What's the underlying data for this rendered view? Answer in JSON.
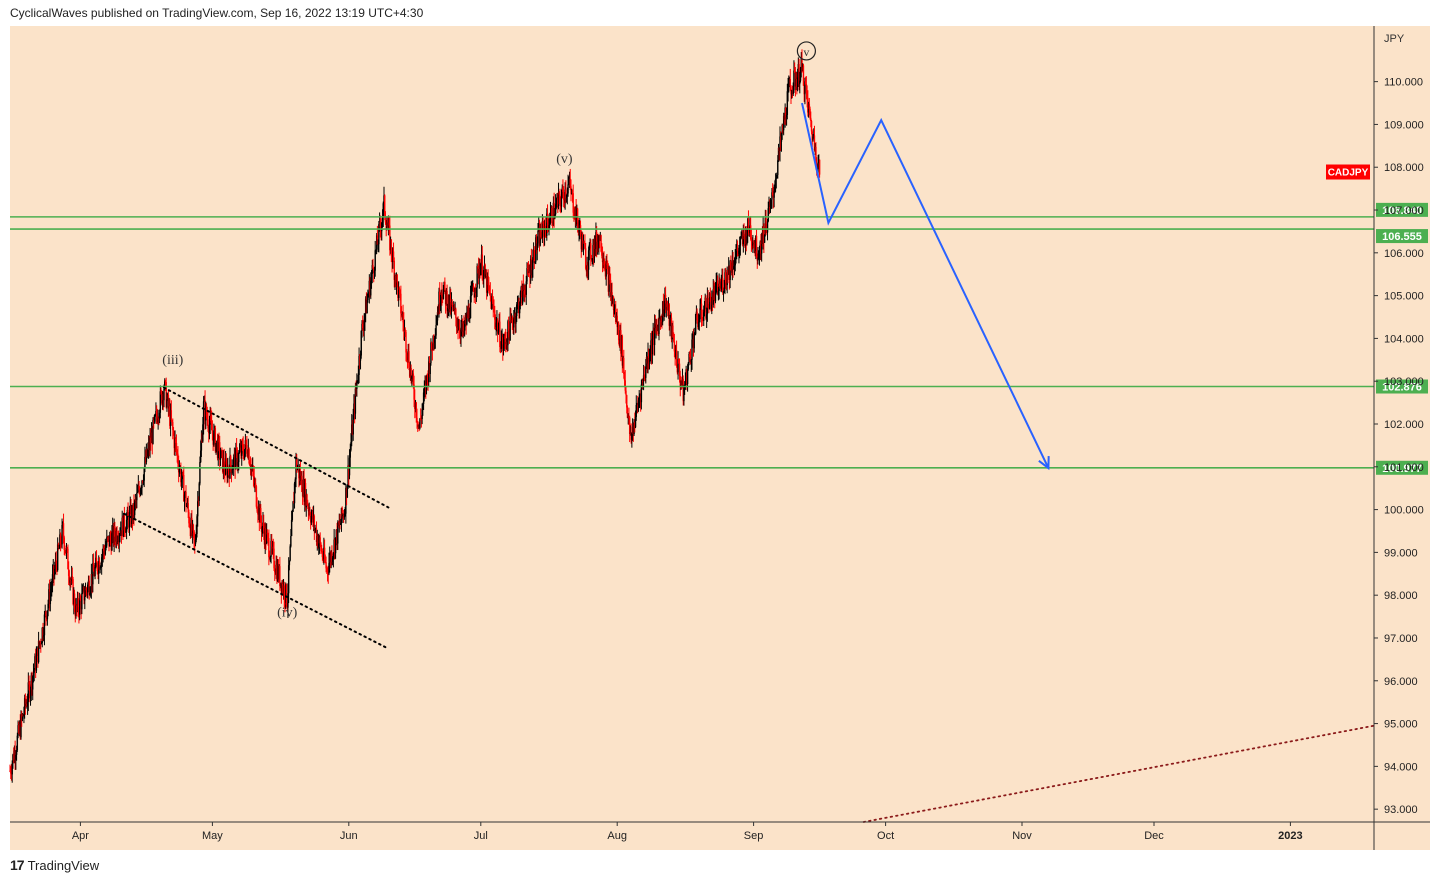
{
  "header": {
    "published_text": "CyclicalWaves published on TradingView.com, Sep 16, 2022 13:19 UTC+4:30"
  },
  "footer": {
    "logo_glyph": "17",
    "brand": "TradingView"
  },
  "colors": {
    "background": "#fbe3c9",
    "candle_up": "#000000",
    "candle_down": "#ff0000",
    "level_line": "#4caf50",
    "projection": "#2962ff",
    "symbol_badge": "#ff0000",
    "channel": "#000000",
    "support_trend": "#8b1a1a"
  },
  "chart_data": {
    "type": "candlestick",
    "symbol": "CADJPY",
    "currency": "JPY",
    "x_axis_labels": [
      "Apr",
      "May",
      "Jun",
      "Jul",
      "Aug",
      "Sep",
      "Oct",
      "Nov",
      "Dec",
      "2023"
    ],
    "y_axis_ticks": [
      "93.000",
      "94.000",
      "95.000",
      "96.000",
      "97.000",
      "98.000",
      "99.000",
      "100.000",
      "101.000",
      "102.000",
      "103.000",
      "104.000",
      "105.000",
      "106.000",
      "107.000",
      "108.000",
      "109.000",
      "110.000"
    ],
    "ylim": [
      92.7,
      111.3
    ],
    "xlim": [
      "2022-03-16",
      "2023-01-20"
    ],
    "price_path": [
      {
        "date": "2022-03-16",
        "price": 93.9
      },
      {
        "date": "2022-03-22",
        "price": 96.5
      },
      {
        "date": "2022-03-28",
        "price": 99.5
      },
      {
        "date": "2022-03-31",
        "price": 97.6
      },
      {
        "date": "2022-04-07",
        "price": 99.2
      },
      {
        "date": "2022-04-13",
        "price": 99.9
      },
      {
        "date": "2022-04-20",
        "price": 102.9
      },
      {
        "date": "2022-04-27",
        "price": 99.1
      },
      {
        "date": "2022-04-29",
        "price": 102.4
      },
      {
        "date": "2022-05-04",
        "price": 100.9
      },
      {
        "date": "2022-05-09",
        "price": 101.5
      },
      {
        "date": "2022-05-12",
        "price": 99.7
      },
      {
        "date": "2022-05-18",
        "price": 97.9
      },
      {
        "date": "2022-05-20",
        "price": 101.1
      },
      {
        "date": "2022-05-27",
        "price": 98.6
      },
      {
        "date": "2022-05-31",
        "price": 100.0
      },
      {
        "date": "2022-06-04",
        "price": 104.2
      },
      {
        "date": "2022-06-09",
        "price": 107.1
      },
      {
        "date": "2022-06-13",
        "price": 104.6
      },
      {
        "date": "2022-06-17",
        "price": 101.9
      },
      {
        "date": "2022-06-22",
        "price": 105.2
      },
      {
        "date": "2022-06-27",
        "price": 104.1
      },
      {
        "date": "2022-07-01",
        "price": 105.8
      },
      {
        "date": "2022-07-06",
        "price": 103.8
      },
      {
        "date": "2022-07-11",
        "price": 105.2
      },
      {
        "date": "2022-07-14",
        "price": 106.3
      },
      {
        "date": "2022-07-21",
        "price": 107.6
      },
      {
        "date": "2022-07-25",
        "price": 105.8
      },
      {
        "date": "2022-07-28",
        "price": 106.4
      },
      {
        "date": "2022-08-02",
        "price": 103.8
      },
      {
        "date": "2022-08-04",
        "price": 101.6
      },
      {
        "date": "2022-08-08",
        "price": 103.6
      },
      {
        "date": "2022-08-12",
        "price": 104.9
      },
      {
        "date": "2022-08-16",
        "price": 102.7
      },
      {
        "date": "2022-08-19",
        "price": 104.4
      },
      {
        "date": "2022-08-25",
        "price": 105.3
      },
      {
        "date": "2022-08-31",
        "price": 106.6
      },
      {
        "date": "2022-09-02",
        "price": 106.0
      },
      {
        "date": "2022-09-05",
        "price": 107.1
      },
      {
        "date": "2022-09-09",
        "price": 109.8
      },
      {
        "date": "2022-09-12",
        "price": 110.3
      },
      {
        "date": "2022-09-14",
        "price": 109.0
      },
      {
        "date": "2022-09-16",
        "price": 107.9
      }
    ],
    "horizontal_levels": [
      {
        "label": "106.840",
        "value": 106.84
      },
      {
        "label": "106.555",
        "value": 106.555
      },
      {
        "label": "102.876",
        "value": 102.876
      },
      {
        "label": "100.977",
        "value": 100.977
      }
    ],
    "projection_path": [
      {
        "date": "2022-09-12",
        "price": 109.5
      },
      {
        "date": "2022-09-18",
        "price": 106.7
      },
      {
        "date": "2022-09-30",
        "price": 109.1
      },
      {
        "date": "2022-11-07",
        "price": 100.97
      }
    ],
    "channel_lines": [
      {
        "from": {
          "date": "2022-04-20",
          "price": 102.85
        },
        "to": {
          "date": "2022-06-10",
          "price": 100.05
        }
      },
      {
        "from": {
          "date": "2022-04-11",
          "price": 99.9
        },
        "to": {
          "date": "2022-06-10",
          "price": 96.75
        }
      }
    ],
    "support_trend": {
      "from": {
        "date": "2022-09-26",
        "price": 92.7
      },
      "to": {
        "date": "2023-01-20",
        "price": 94.95
      }
    },
    "wave_labels": [
      {
        "text": "(iii)",
        "date": "2022-04-22",
        "price": 103.4,
        "circled": false
      },
      {
        "text": "(iv)",
        "date": "2022-05-18",
        "price": 97.5,
        "circled": false
      },
      {
        "text": "(v)",
        "date": "2022-07-20",
        "price": 108.1,
        "circled": false
      },
      {
        "text": "v",
        "date": "2022-09-13",
        "price": 110.6,
        "circled": true
      }
    ],
    "last_price_label": "CADJPY"
  }
}
